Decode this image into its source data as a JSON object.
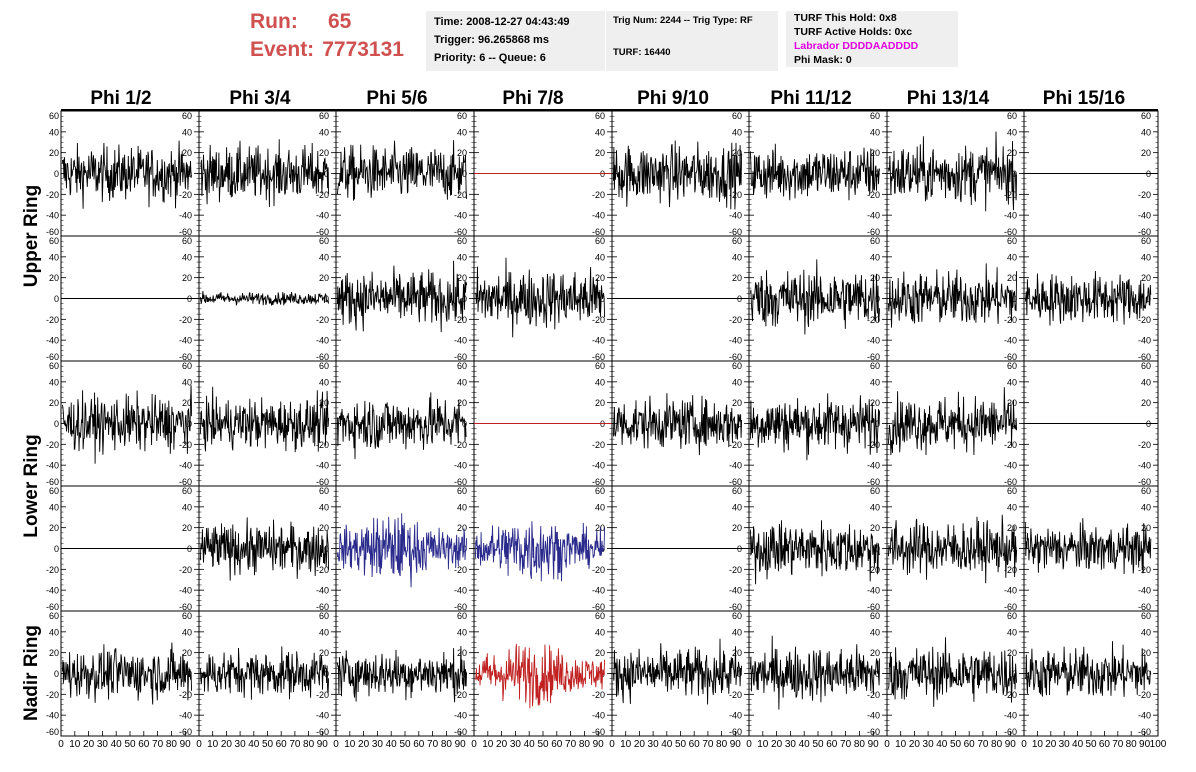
{
  "header": {
    "run_label": "Run:",
    "run_value": "65",
    "event_label": "Event:",
    "event_value": "7773131",
    "run_color": "#d05050"
  },
  "info_box_1": {
    "time": "Time: 2008-12-27 04:43:49",
    "trigger": "Trigger: 96.265868 ms",
    "priority": "Priority: 6 -- Queue: 6"
  },
  "info_box_2": {
    "trig": "Trig Num: 2244 -- Trig Type: RF",
    "turf": "TURF: 16440"
  },
  "info_box_3": {
    "this_hold": "TURF This Hold: 0x8",
    "active_holds": "TURF Active Holds: 0xc",
    "labrador": "Labrador DDDDAADDDD",
    "labrador_color": "#e000e0",
    "phi_mask": "Phi Mask: 0"
  },
  "chart_data": {
    "type": "line",
    "title": "",
    "columns": [
      "Phi 1/2",
      "Phi 3/4",
      "Phi 5/6",
      "Phi 7/8",
      "Phi 9/10",
      "Phi 11/12",
      "Phi 13/14",
      "Phi 15/16"
    ],
    "row_groups": [
      "Upper Ring",
      "Lower Ring",
      "Nadir Ring"
    ],
    "xlim": [
      0,
      100
    ],
    "ylim": [
      -60,
      60
    ],
    "y_ticks": [
      -60,
      -40,
      -20,
      0,
      20,
      40,
      60
    ],
    "x_ticks": [
      0,
      10,
      20,
      30,
      40,
      50,
      60,
      70,
      80,
      90,
      100
    ],
    "x_tick_labels_nadir": [
      "0",
      "10",
      "20",
      "30",
      "40",
      "50",
      "60",
      "70",
      "80",
      "90",
      "100"
    ],
    "colors": {
      "normal": "#000000",
      "triggered": "#c02020",
      "highlight": "#2a2a8c"
    },
    "panels": [
      [
        "noise:13",
        "noise:13",
        "noise:13",
        "flat:red",
        "noise:14",
        "noise:13",
        "noise:14",
        "flat:black"
      ],
      [
        "flat:black",
        "noise:3",
        "noise:13",
        "noise:14",
        "flat:black",
        "noise:14",
        "noise:13",
        "noise:12"
      ],
      [
        "noise:13",
        "noise:12",
        "noise:13",
        "flat:red",
        "noise:12",
        "noise:13",
        "noise:13",
        "flat:black"
      ],
      [
        "flat:black",
        "noise:12",
        "noise:blue:14",
        "noise:blue:14",
        "flat:black",
        "noise:13",
        "noise:13",
        "noise:11"
      ],
      [
        "noise:12",
        "noise:11",
        "noise:11",
        "noise:red:13",
        "noise:12",
        "noise:13",
        "noise:13",
        "noise:12"
      ]
    ]
  }
}
